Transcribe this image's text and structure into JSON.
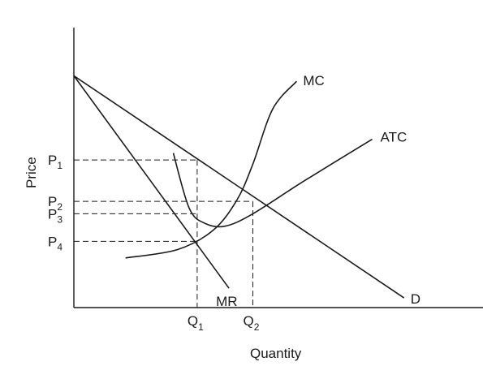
{
  "chart_data": {
    "type": "line",
    "title": "",
    "xlabel": "Quantity",
    "ylabel": "Price",
    "price_ticks": [
      {
        "base": "P",
        "sub": "1",
        "value": 5.35
      },
      {
        "base": "P",
        "sub": "2",
        "value": 3.85
      },
      {
        "base": "P",
        "sub": "3",
        "value": 3.4
      },
      {
        "base": "P",
        "sub": "4",
        "value": 2.4
      }
    ],
    "quantity_ticks": [
      {
        "base": "Q",
        "sub": "1",
        "value": 3.1
      },
      {
        "base": "Q",
        "sub": "2",
        "value": 4.5
      }
    ],
    "series": [
      {
        "name": "D",
        "points": [
          [
            0,
            8.4
          ],
          [
            8.3,
            0.35
          ]
        ]
      },
      {
        "name": "MR",
        "points": [
          [
            0,
            8.4
          ],
          [
            3.9,
            0.7
          ]
        ]
      },
      {
        "name": "MC",
        "points": [
          [
            1.3,
            1.8
          ],
          [
            2.6,
            2.1
          ],
          [
            3.5,
            2.8
          ],
          [
            4.1,
            3.9
          ],
          [
            4.5,
            5.2
          ],
          [
            5.0,
            7.2
          ],
          [
            5.6,
            8.2
          ]
        ]
      },
      {
        "name": "ATC",
        "points": [
          [
            2.5,
            5.6
          ],
          [
            2.9,
            3.6
          ],
          [
            3.3,
            3.05
          ],
          [
            3.8,
            2.95
          ],
          [
            4.5,
            3.4
          ],
          [
            5.8,
            4.6
          ],
          [
            7.5,
            6.1
          ]
        ]
      }
    ]
  }
}
